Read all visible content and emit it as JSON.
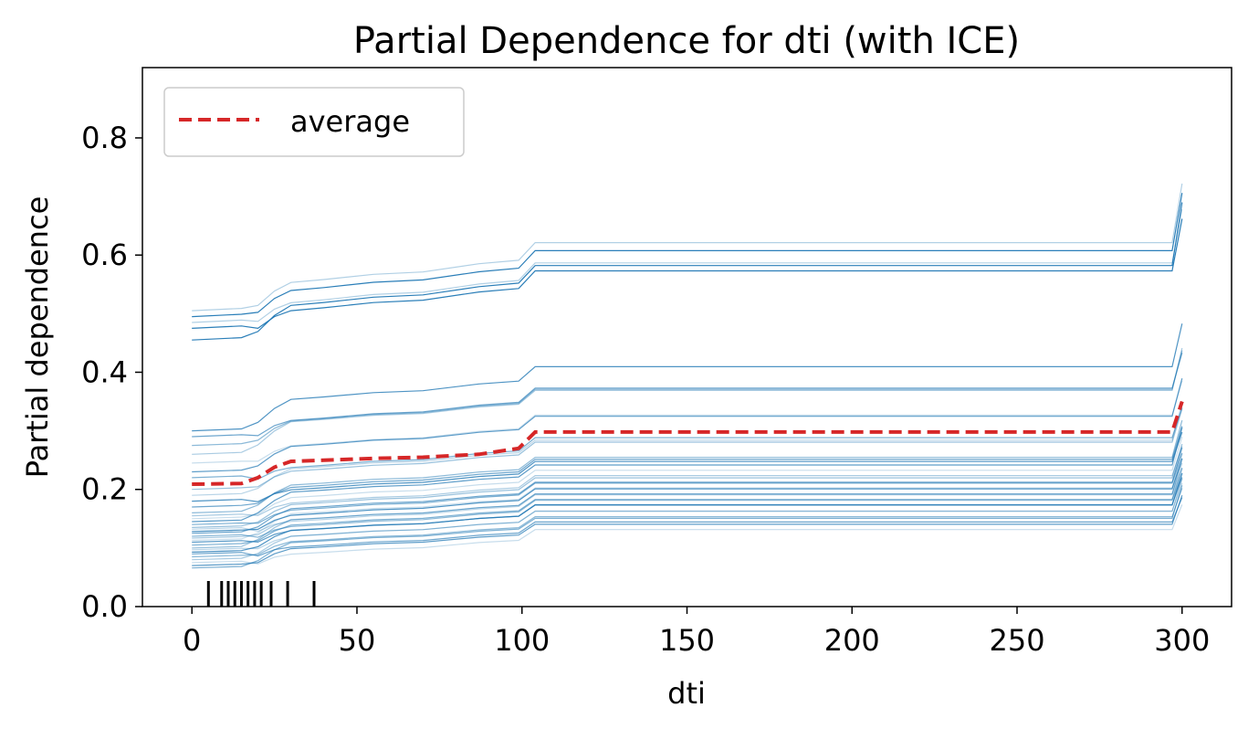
{
  "chart_data": {
    "type": "line",
    "title": "Partial Dependence for dti (with ICE)",
    "xlabel": "dti",
    "ylabel": "Partial dependence",
    "xlim": [
      -15,
      315
    ],
    "ylim": [
      0,
      0.92
    ],
    "xticks": [
      0,
      50,
      100,
      150,
      200,
      250,
      300
    ],
    "yticks": [
      0.0,
      0.2,
      0.4,
      0.6,
      0.8
    ],
    "xtick_labels": [
      "0",
      "50",
      "100",
      "150",
      "200",
      "250",
      "300"
    ],
    "ytick_labels": [
      "0.0",
      "0.2",
      "0.4",
      "0.6",
      "0.8"
    ],
    "grid": false,
    "legend": {
      "position": "top-left",
      "entries": [
        "average"
      ]
    },
    "colors": {
      "ice": "#1f77b4",
      "average": "#d62728",
      "rug": "#000000"
    },
    "x": [
      0,
      15,
      20,
      25,
      30,
      40,
      55,
      70,
      87,
      99,
      104,
      297,
      300
    ],
    "shape_increments": [
      0,
      0.004,
      0.01,
      0.035,
      0.05,
      0.055,
      0.064,
      0.068,
      0.082,
      0.088,
      0.118,
      0.118,
      0.2
    ],
    "series": [
      {
        "name": "average",
        "values": [
          0.209,
          0.21,
          0.22,
          0.238,
          0.248,
          0.25,
          0.253,
          0.255,
          0.26,
          0.27,
          0.298,
          0.298,
          0.35
        ]
      }
    ],
    "ice_start_values": [
      0.475,
      0.495,
      0.455,
      0.485,
      0.505,
      0.3,
      0.29,
      0.275,
      0.26,
      0.245,
      0.23,
      0.22,
      0.2,
      0.19,
      0.18,
      0.17,
      0.16,
      0.155,
      0.15,
      0.145,
      0.14,
      0.135,
      0.132,
      0.128,
      0.125,
      0.12,
      0.117,
      0.113,
      0.11,
      0.105,
      0.1,
      0.097,
      0.093,
      0.09,
      0.085,
      0.08,
      0.075,
      0.07,
      0.066
    ],
    "rug_x": [
      5,
      9,
      11,
      13,
      15,
      17,
      19,
      21,
      24,
      29,
      37
    ]
  }
}
